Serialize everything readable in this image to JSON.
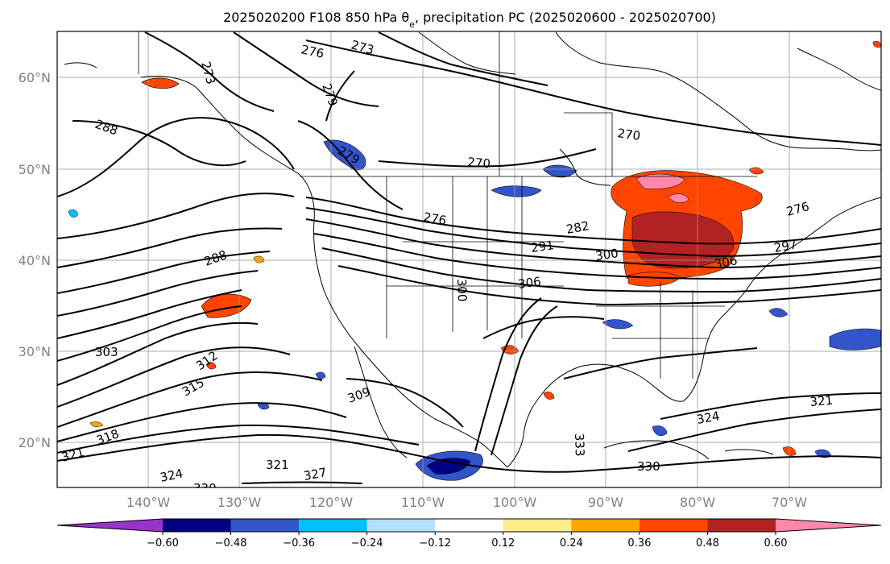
{
  "title": "2025020200 F108 850 hPa θ",
  "title_sub": "e",
  "title_rest": ", precipitation PC (2025020600 - 2025020700)",
  "lon_labels": [
    "140°W",
    "130°W",
    "120°W",
    "110°W",
    "100°W",
    "90°W",
    "80°W",
    "70°W"
  ],
  "lat_labels": [
    "60°N",
    "50°N",
    "40°N",
    "30°N",
    "20°N"
  ],
  "colorbar": {
    "ticks": [
      "−0.60",
      "−0.48",
      "−0.36",
      "−0.24",
      "−0.12",
      "0.12",
      "0.24",
      "0.36",
      "0.48",
      "0.60"
    ],
    "colors": [
      "#9933cc",
      "#000080",
      "#3355cc",
      "#00bfff",
      "#b3e0ff",
      "#ffffff",
      "#ffee88",
      "#ffa500",
      "#ff4500",
      "#b22222",
      "#ff88aa"
    ]
  },
  "contour_labels": [
    {
      "text": "273"
    },
    {
      "text": "276"
    },
    {
      "text": "279"
    },
    {
      "text": "273"
    },
    {
      "text": "288"
    },
    {
      "text": "270"
    },
    {
      "text": "270"
    },
    {
      "text": "279"
    },
    {
      "text": "276"
    },
    {
      "text": "282"
    },
    {
      "text": "276"
    },
    {
      "text": "291"
    },
    {
      "text": "300"
    },
    {
      "text": "297"
    },
    {
      "text": "306"
    },
    {
      "text": "288"
    },
    {
      "text": "300"
    },
    {
      "text": "306"
    },
    {
      "text": "303"
    },
    {
      "text": "312"
    },
    {
      "text": "315"
    },
    {
      "text": "309"
    },
    {
      "text": "318"
    },
    {
      "text": "321"
    },
    {
      "text": "324"
    },
    {
      "text": "330"
    },
    {
      "text": "321"
    },
    {
      "text": "327"
    },
    {
      "text": "333"
    },
    {
      "text": "330"
    },
    {
      "text": "324"
    },
    {
      "text": "321"
    }
  ]
}
